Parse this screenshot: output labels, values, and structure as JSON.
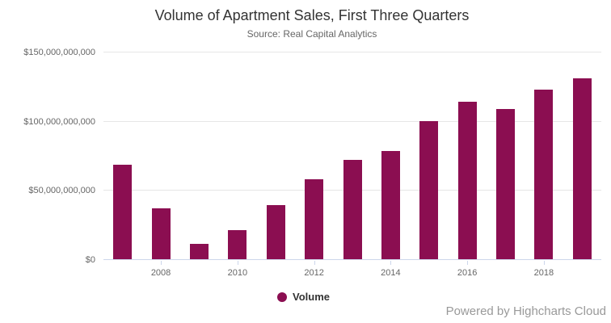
{
  "chart_data": {
    "type": "bar",
    "title": "Volume of Apartment Sales, First Three Quarters",
    "subtitle": "Source: Real Capital Analytics",
    "categories": [
      2007,
      2008,
      2009,
      2010,
      2011,
      2012,
      2013,
      2014,
      2015,
      2016,
      2017,
      2018,
      2019
    ],
    "series": [
      {
        "name": "Volume",
        "values": [
          68500000000,
          36500000000,
          11200000000,
          21300000000,
          39000000000,
          58000000000,
          71500000000,
          78500000000,
          99700000000,
          113900000000,
          108300000000,
          122500000000,
          131000000000
        ]
      }
    ],
    "xlabel": "",
    "ylabel": "",
    "ylim": [
      0,
      150000000000
    ],
    "ytick_values": [
      0,
      50000000000,
      100000000000,
      150000000000
    ],
    "ytick_labels": [
      "$0",
      "$50,000,000,000",
      "$100,000,000,000",
      "$150,000,000,000"
    ],
    "xtick_years": [
      2008,
      2010,
      2012,
      2014,
      2016,
      2018
    ],
    "grid": true,
    "legend_position": "bottom",
    "colors": {
      "bar": "#8B0E51",
      "grid_line": "#E6E6E6",
      "axis_line": "#CCD6EB",
      "title_text": "#333333",
      "subtitle_text": "#666666",
      "axis_label_text": "#666666",
      "legend_text": "#333333",
      "credits_text": "#999999"
    }
  },
  "credits": {
    "label": "Powered by Highcharts Cloud"
  }
}
